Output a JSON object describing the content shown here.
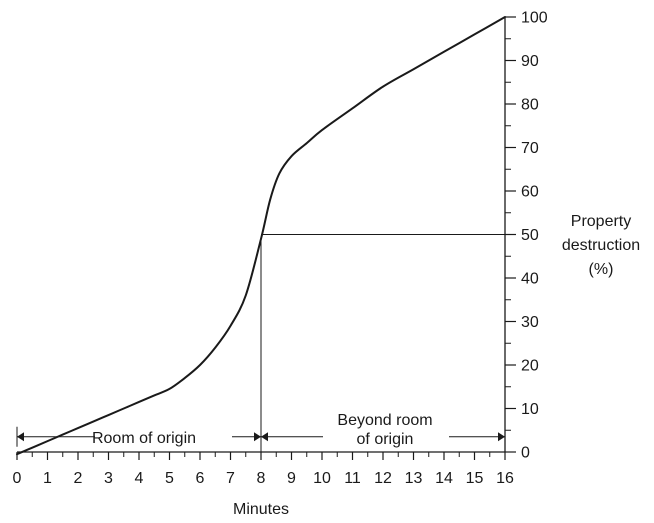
{
  "chart_data": {
    "type": "line",
    "title": "",
    "xlabel": "Minutes",
    "ylabel_lines": [
      "Property",
      "destruction",
      "(%)"
    ],
    "xlim": [
      0,
      16
    ],
    "ylim": [
      0,
      100
    ],
    "x_ticks": [
      "0",
      "1",
      "2",
      "3",
      "4",
      "5",
      "6",
      "7",
      "8",
      "9",
      "10",
      "11",
      "12",
      "13",
      "14",
      "15",
      "16"
    ],
    "y_ticks": [
      "0",
      "10",
      "20",
      "30",
      "40",
      "50",
      "60",
      "70",
      "80",
      "90",
      "100"
    ],
    "y_axis_side": "right",
    "grid": false,
    "series": [
      {
        "x": [
          0,
          0.5,
          1,
          1.5,
          2,
          2.5,
          3,
          3.5,
          4,
          4.5,
          5,
          5.5,
          6,
          6.5,
          7,
          7.5,
          8,
          8.3,
          8.6,
          9,
          9.5,
          10,
          11,
          12,
          13,
          14,
          15,
          16
        ],
        "y": [
          -0.5,
          1,
          2.5,
          4,
          5.5,
          7,
          8.5,
          10,
          11.5,
          13,
          14.5,
          17,
          20,
          24,
          29,
          36,
          49,
          58,
          64,
          68,
          71,
          74,
          79,
          84,
          88,
          92,
          96,
          100
        ]
      }
    ],
    "reference_lines": [
      {
        "type": "vertical",
        "x": 8,
        "y_from": 0,
        "y_to": 49
      },
      {
        "type": "horizontal",
        "y": 50,
        "x_from": 8,
        "x_to": 16
      }
    ],
    "annotations": [
      {
        "text": "Room of origin",
        "x_from": 0,
        "x_to": 8,
        "y": 3.5
      },
      {
        "text_lines": [
          "Beyond room",
          "of origin"
        ],
        "x_from": 8,
        "x_to": 16,
        "y": 3.5
      }
    ]
  }
}
